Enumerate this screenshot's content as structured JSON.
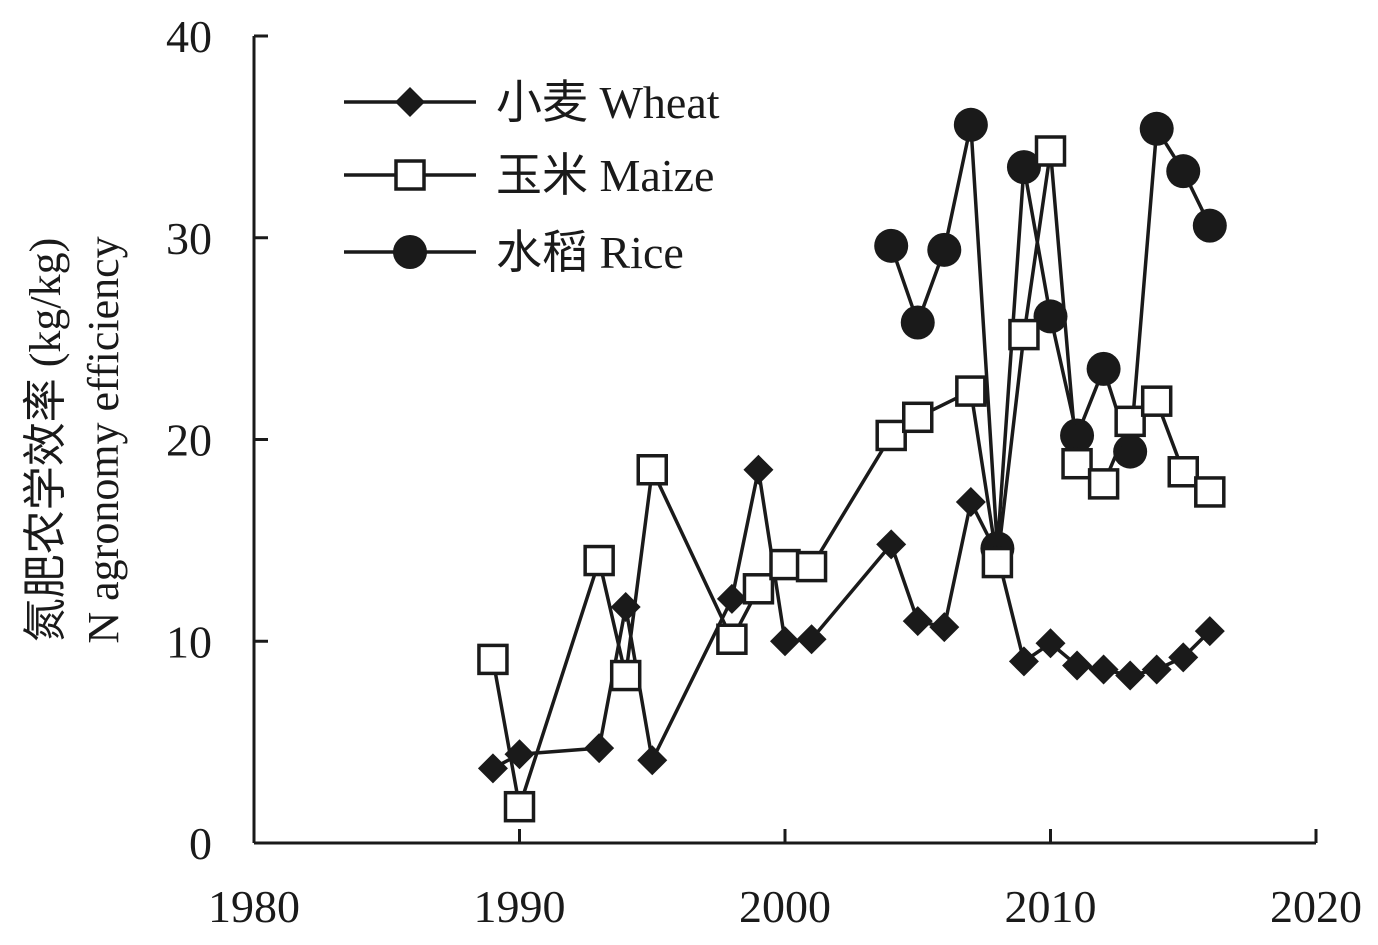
{
  "chart_data": {
    "type": "line",
    "ylabel_cn": "氮肥农学效率 (kg/kg)",
    "ylabel_en": "N agronomy efficiency",
    "xlabel": "",
    "title": "",
    "xlim": [
      1980,
      2020
    ],
    "ylim": [
      0,
      40
    ],
    "xticks": [
      1980,
      1990,
      2000,
      2010,
      2020
    ],
    "yticks": [
      0,
      10,
      20,
      30,
      40
    ],
    "grid": false,
    "legend_position": "top-left",
    "series": [
      {
        "name": "小麦 Wheat",
        "marker": "diamond-filled",
        "x": [
          1989,
          1990,
          1993,
          1994,
          1995,
          1998,
          1999,
          2000,
          2001,
          2004,
          2005,
          2006,
          2007,
          2008,
          2009,
          2010,
          2011,
          2012,
          2013,
          2014,
          2015,
          2016
        ],
        "y": [
          3.7,
          4.4,
          4.7,
          11.7,
          4.1,
          12.1,
          18.5,
          10.0,
          10.1,
          14.8,
          11.0,
          10.7,
          16.9,
          14.3,
          9.0,
          9.9,
          8.8,
          8.6,
          8.3,
          8.6,
          9.2,
          10.5
        ]
      },
      {
        "name": "玉米 Maize",
        "marker": "square-open",
        "x": [
          1989,
          1990,
          1993,
          1994,
          1995,
          1998,
          1999,
          2000,
          2001,
          2004,
          2005,
          2007,
          2008,
          2009,
          2010,
          2011,
          2012,
          2013,
          2014,
          2015,
          2016
        ],
        "y": [
          9.1,
          1.8,
          14.0,
          8.3,
          18.5,
          10.1,
          12.6,
          13.8,
          13.7,
          20.2,
          21.1,
          22.4,
          13.9,
          25.2,
          34.3,
          18.8,
          17.8,
          20.9,
          21.9,
          18.4,
          17.4
        ]
      },
      {
        "name": "水稻 Rice",
        "marker": "circle-filled",
        "x": [
          2004,
          2005,
          2006,
          2007,
          2008,
          2009,
          2010,
          2011,
          2012,
          2013,
          2014,
          2015,
          2016
        ],
        "y": [
          29.6,
          25.8,
          29.4,
          35.6,
          14.6,
          33.5,
          26.1,
          20.2,
          23.5,
          19.4,
          35.4,
          33.3,
          30.6
        ]
      }
    ]
  }
}
